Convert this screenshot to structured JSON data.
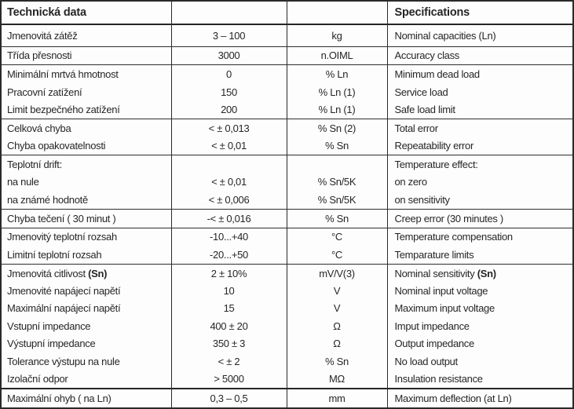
{
  "colors": {
    "border_dark": "#2a2a2a",
    "text": "#262626",
    "background": "#ffffff"
  },
  "table": {
    "header": {
      "czech": "Technická data",
      "english": "Specifications"
    },
    "rows": [
      {
        "label": "Jmenovitá zátěž",
        "value": "3 – 100",
        "unit": "kg",
        "spec": "Nominal capacities (Ln)"
      },
      {
        "label": "Třída přesnosti",
        "value": "3000",
        "unit": "n.OIML",
        "spec": "Accuracy class"
      },
      {
        "label": "Minimální mrtvá hmotnost",
        "value": "0",
        "unit": "% Ln",
        "spec": "Minimum dead load"
      },
      {
        "label": "Pracovní zatížení",
        "value": "150",
        "unit": "% Ln (1)",
        "spec": "Service load"
      },
      {
        "label": "Limit bezpečného zatížení",
        "value": "200",
        "unit": "% Ln (1)",
        "spec": "Safe load limit"
      },
      {
        "label": "Celková chyba",
        "value": "< ± 0,013",
        "unit": "% Sn (2)",
        "spec": "Total error"
      },
      {
        "label": "Chyba opakovatelnosti",
        "value": "< ± 0,01",
        "unit": "% Sn",
        "spec": "Repeatability error"
      },
      {
        "label": "Teplotní drift:",
        "value": "",
        "unit": "",
        "spec": "Temperature effect:"
      },
      {
        "label": "na nule",
        "value": "< ± 0,01",
        "unit": "% Sn/5K",
        "spec": "on zero"
      },
      {
        "label": "na známé hodnotě",
        "value": "< ± 0,006",
        "unit": "% Sn/5K",
        "spec": "on sensitivity"
      },
      {
        "label": "Chyba tečení ( 30 minut )",
        "value": "-< ± 0,016",
        "unit": "% Sn",
        "spec": "Creep error (30 minutes )"
      },
      {
        "label": "Jmenovitý teplotní rozsah",
        "value": "-10...+40",
        "unit": "°C",
        "spec": "Temperature compensation"
      },
      {
        "label": "Limitní teplotní rozsah",
        "value": "-20...+50",
        "unit": "°C",
        "spec": "Temparature limits"
      },
      {
        "label_prefix": "Jmenovitá citlivost ",
        "label_bold": "(Sn)",
        "value": "2 ± 10%",
        "unit": "mV/V(3)",
        "spec_prefix": "Nominal sensitivity ",
        "spec_bold": "(Sn)"
      },
      {
        "label": "Jmenovité napájecí napětí",
        "value": "10",
        "unit": "V",
        "spec": "Nominal input voltage"
      },
      {
        "label": "Maximální napájecí napětí",
        "value": "15",
        "unit": "V",
        "spec": "Maximum input voltage"
      },
      {
        "label": "Vstupní impedance",
        "value": "400 ± 20",
        "unit": "Ω",
        "spec": "Imput impedance"
      },
      {
        "label": "Výstupní impedance",
        "value": "350 ± 3",
        "unit": "Ω",
        "spec": "Output impedance"
      },
      {
        "label": "Tolerance výstupu na nule",
        "value": "< ± 2",
        "unit": "% Sn",
        "spec": "No load output"
      },
      {
        "label": "Izolační odpor",
        "value": "> 5000",
        "unit": "MΩ",
        "spec": "Insulation resistance"
      },
      {
        "label": "Maximální ohyb ( na Ln)",
        "value": "0,3 – 0,5",
        "unit": "mm",
        "spec": "Maximum deflection (at Ln)"
      }
    ]
  }
}
